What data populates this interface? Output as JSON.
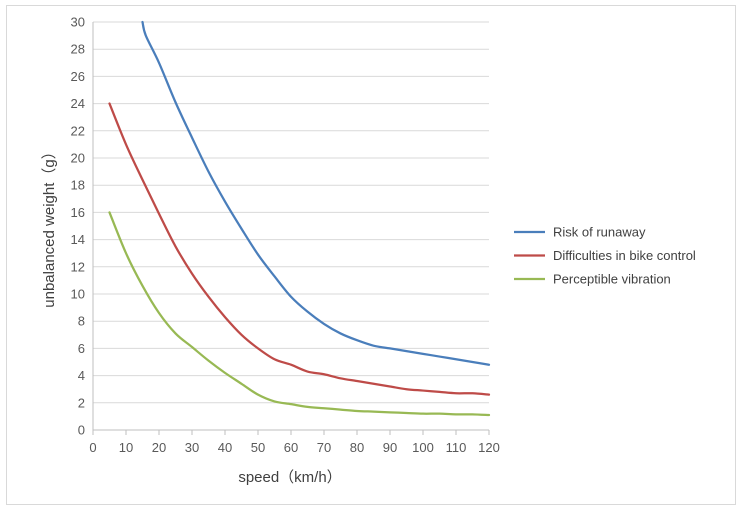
{
  "chart_data": {
    "type": "line",
    "title": "",
    "xlabel": "speed（km/h）",
    "ylabel": "unbalanced weight（g）",
    "xlim": [
      0,
      120
    ],
    "ylim": [
      0,
      30
    ],
    "x_ticks": [
      "0",
      "10",
      "20",
      "30",
      "40",
      "50",
      "60",
      "70",
      "80",
      "90",
      "100",
      "110",
      "120"
    ],
    "y_ticks": [
      "0",
      "2",
      "4",
      "6",
      "8",
      "10",
      "12",
      "14",
      "16",
      "18",
      "20",
      "22",
      "24",
      "26",
      "28",
      "30"
    ],
    "grid": "horizontal",
    "legend_position": "right",
    "series": [
      {
        "name": "Risk of runaway",
        "color": "#4a7ebb",
        "points": [
          [
            15,
            30
          ],
          [
            16,
            29
          ],
          [
            20,
            27
          ],
          [
            25,
            24.1
          ],
          [
            30,
            21.5
          ],
          [
            35,
            19
          ],
          [
            40,
            16.8
          ],
          [
            45,
            14.8
          ],
          [
            50,
            12.9
          ],
          [
            55,
            11.3
          ],
          [
            60,
            9.8
          ],
          [
            65,
            8.7
          ],
          [
            70,
            7.8
          ],
          [
            75,
            7.1
          ],
          [
            80,
            6.6
          ],
          [
            85,
            6.2
          ],
          [
            90,
            6.0
          ],
          [
            95,
            5.8
          ],
          [
            100,
            5.6
          ],
          [
            105,
            5.4
          ],
          [
            110,
            5.2
          ],
          [
            115,
            5.0
          ],
          [
            120,
            4.8
          ]
        ]
      },
      {
        "name": "Difficulties in bike control",
        "color": "#be4b48",
        "points": [
          [
            5,
            24
          ],
          [
            10,
            21
          ],
          [
            15,
            18.4
          ],
          [
            20,
            15.9
          ],
          [
            25,
            13.5
          ],
          [
            30,
            11.5
          ],
          [
            35,
            9.8
          ],
          [
            40,
            8.3
          ],
          [
            45,
            7.0
          ],
          [
            50,
            6.0
          ],
          [
            55,
            5.2
          ],
          [
            60,
            4.8
          ],
          [
            65,
            4.3
          ],
          [
            70,
            4.1
          ],
          [
            75,
            3.8
          ],
          [
            80,
            3.6
          ],
          [
            85,
            3.4
          ],
          [
            90,
            3.2
          ],
          [
            95,
            3.0
          ],
          [
            100,
            2.9
          ],
          [
            105,
            2.8
          ],
          [
            110,
            2.7
          ],
          [
            115,
            2.7
          ],
          [
            120,
            2.6
          ]
        ]
      },
      {
        "name": "Perceptible vibration",
        "color": "#98b954",
        "points": [
          [
            5,
            16
          ],
          [
            10,
            13
          ],
          [
            15,
            10.6
          ],
          [
            20,
            8.6
          ],
          [
            25,
            7.1
          ],
          [
            30,
            6.1
          ],
          [
            35,
            5.1
          ],
          [
            40,
            4.2
          ],
          [
            45,
            3.4
          ],
          [
            50,
            2.6
          ],
          [
            55,
            2.1
          ],
          [
            60,
            1.9
          ],
          [
            65,
            1.7
          ],
          [
            70,
            1.6
          ],
          [
            75,
            1.5
          ],
          [
            80,
            1.4
          ],
          [
            85,
            1.35
          ],
          [
            90,
            1.3
          ],
          [
            95,
            1.25
          ],
          [
            100,
            1.2
          ],
          [
            105,
            1.2
          ],
          [
            110,
            1.15
          ],
          [
            115,
            1.15
          ],
          [
            120,
            1.1
          ]
        ]
      }
    ]
  }
}
